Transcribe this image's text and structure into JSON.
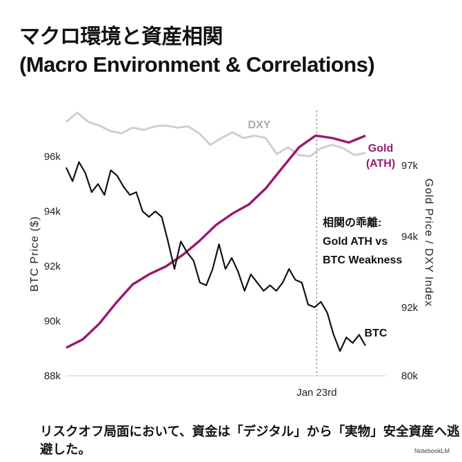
{
  "title_ja": "マクロ環境と資産相関",
  "title_en": "(Macro Environment & Correlations)",
  "footer": "リスクオフ局面において、資金は「デジタル」から「実物」安全資産へ逃避した。",
  "credit": "NotebookLM",
  "chart_data": {
    "type": "line",
    "ylabel": "BTC Price ($)",
    "y2label": "Gold Price / DXY Index",
    "ylim": [
      88,
      96
    ],
    "yticks": [
      "88k",
      "90k",
      "92k",
      "94k",
      "96k"
    ],
    "y2ticks": [
      "80k",
      "92k",
      "94k",
      "97k"
    ],
    "xticks": [
      "Jan 23rd"
    ],
    "grid": false,
    "annotation": [
      "相関の乖離:",
      "Gold ATH vs",
      "BTC Weakness"
    ],
    "series": [
      {
        "name": "BTC",
        "axis": "left",
        "color": "#111111",
        "unit": "k",
        "values": [
          95.6,
          95.1,
          95.8,
          95.4,
          94.7,
          95.0,
          94.6,
          95.5,
          95.3,
          94.9,
          94.6,
          94.7,
          94.0,
          93.8,
          94.0,
          93.8,
          92.9,
          91.9,
          92.9,
          92.5,
          92.2,
          91.4,
          91.3,
          91.9,
          92.8,
          91.9,
          92.3,
          91.8,
          91.1,
          91.7,
          91.4,
          91.1,
          91.3,
          91.1,
          91.4,
          91.9,
          91.5,
          91.4,
          90.6,
          90.5,
          90.7,
          90.3,
          89.5,
          88.9,
          89.4,
          89.2,
          89.5,
          89.1
        ]
      },
      {
        "name": "Gold (ATH)",
        "axis": "right",
        "color": "#9c1a6e",
        "unit": "k",
        "values": [
          84.95,
          86.4,
          89.2,
          92.13,
          92.65,
          92.94,
          93.16,
          93.48,
          93.87,
          94.48,
          94.97,
          95.36,
          96.03,
          96.9,
          97.77,
          98.26,
          98.16,
          97.97,
          98.26
        ]
      },
      {
        "name": "DXY",
        "axis": "right",
        "color": "#cfcfcf",
        "unit": "k",
        "values": [
          98.84,
          99.23,
          98.84,
          98.69,
          98.45,
          98.36,
          98.6,
          98.5,
          98.65,
          98.69,
          98.6,
          98.65,
          98.36,
          97.87,
          98.16,
          98.4,
          98.16,
          98.26,
          98.16,
          97.48,
          97.77,
          97.44,
          97.39,
          97.73,
          97.87,
          97.73,
          97.44,
          97.53
        ]
      }
    ],
    "colors": {
      "btc": "#111111",
      "gold": "#9c1a6e",
      "dxy": "#cfcfcf",
      "axis": "#dddddd",
      "marker": "#888888"
    }
  }
}
